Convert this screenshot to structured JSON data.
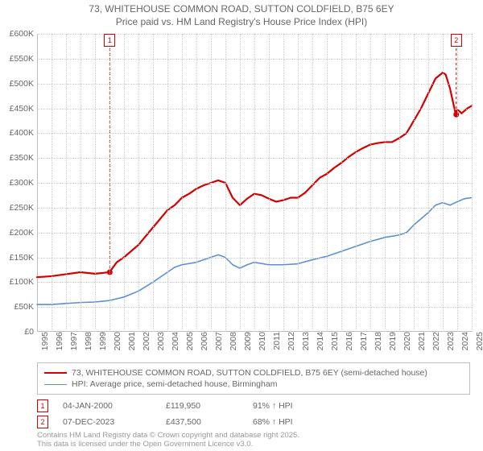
{
  "title_line1": "73, WHITEHOUSE COMMON ROAD, SUTTON COLDFIELD, B75 6EY",
  "title_line2": "Price paid vs. HM Land Registry's House Price Index (HPI)",
  "chart": {
    "type": "line",
    "background_color": "#ffffff",
    "grid_color": "#cccccc",
    "axis_color": "#bfbfbf",
    "text_color": "#666666",
    "x": {
      "min": 1995,
      "max": 2025,
      "step": 1,
      "labels": [
        "1995",
        "1996",
        "1997",
        "1998",
        "1999",
        "2000",
        "2001",
        "2002",
        "2003",
        "2004",
        "2005",
        "2006",
        "2007",
        "2008",
        "2009",
        "2010",
        "2011",
        "2012",
        "2013",
        "2014",
        "2015",
        "2016",
        "2017",
        "2018",
        "2019",
        "2020",
        "2021",
        "2022",
        "2023",
        "2024",
        "2025"
      ]
    },
    "y": {
      "min": 0,
      "max": 600000,
      "step": 50000,
      "prefix": "£",
      "suffix_k": "K",
      "labels": [
        "£0",
        "£50K",
        "£100K",
        "£150K",
        "£200K",
        "£250K",
        "£300K",
        "£350K",
        "£400K",
        "£450K",
        "£500K",
        "£550K",
        "£600K"
      ]
    },
    "series": [
      {
        "name": "price_paid",
        "label": "73, WHITEHOUSE COMMON ROAD, SUTTON COLDFIELD, B75 6EY (semi-detached house)",
        "color": "#d40000",
        "line_width": 2.2,
        "points": [
          [
            1995,
            110000
          ],
          [
            1996,
            112000
          ],
          [
            1997,
            116000
          ],
          [
            1998,
            120000
          ],
          [
            1999,
            117000
          ],
          [
            2000,
            119950
          ],
          [
            2000.5,
            140000
          ],
          [
            2001,
            150000
          ],
          [
            2002,
            175000
          ],
          [
            2003,
            210000
          ],
          [
            2004,
            245000
          ],
          [
            2004.5,
            255000
          ],
          [
            2005,
            270000
          ],
          [
            2005.5,
            278000
          ],
          [
            2006,
            288000
          ],
          [
            2006.5,
            295000
          ],
          [
            2007,
            300000
          ],
          [
            2007.5,
            305000
          ],
          [
            2008,
            300000
          ],
          [
            2008.5,
            270000
          ],
          [
            2009,
            255000
          ],
          [
            2009.5,
            268000
          ],
          [
            2010,
            278000
          ],
          [
            2010.5,
            275000
          ],
          [
            2011,
            268000
          ],
          [
            2011.5,
            262000
          ],
          [
            2012,
            265000
          ],
          [
            2012.5,
            270000
          ],
          [
            2013,
            270000
          ],
          [
            2013.5,
            280000
          ],
          [
            2014,
            295000
          ],
          [
            2014.5,
            310000
          ],
          [
            2015,
            318000
          ],
          [
            2015.5,
            330000
          ],
          [
            2016,
            340000
          ],
          [
            2016.5,
            352000
          ],
          [
            2017,
            362000
          ],
          [
            2017.5,
            370000
          ],
          [
            2018,
            377000
          ],
          [
            2018.5,
            380000
          ],
          [
            2019,
            382000
          ],
          [
            2019.5,
            382000
          ],
          [
            2020,
            390000
          ],
          [
            2020.5,
            400000
          ],
          [
            2021,
            425000
          ],
          [
            2021.5,
            450000
          ],
          [
            2022,
            480000
          ],
          [
            2022.5,
            510000
          ],
          [
            2023,
            522000
          ],
          [
            2023.2,
            518000
          ],
          [
            2023.5,
            490000
          ],
          [
            2023.9,
            437500
          ],
          [
            2024,
            448000
          ],
          [
            2024.3,
            440000
          ],
          [
            2024.7,
            450000
          ],
          [
            2025,
            455000
          ]
        ]
      },
      {
        "name": "hpi",
        "label": "HPI: Average price, semi-detached house, Birmingham",
        "color": "#5b8fd6",
        "line_width": 1.6,
        "points": [
          [
            1995,
            55000
          ],
          [
            1996,
            55000
          ],
          [
            1997,
            57000
          ],
          [
            1998,
            59000
          ],
          [
            1999,
            60000
          ],
          [
            2000,
            63000
          ],
          [
            2001,
            70000
          ],
          [
            2002,
            82000
          ],
          [
            2003,
            100000
          ],
          [
            2004,
            120000
          ],
          [
            2004.5,
            130000
          ],
          [
            2005,
            135000
          ],
          [
            2006,
            140000
          ],
          [
            2007,
            150000
          ],
          [
            2007.5,
            155000
          ],
          [
            2008,
            150000
          ],
          [
            2008.5,
            135000
          ],
          [
            2009,
            128000
          ],
          [
            2009.5,
            135000
          ],
          [
            2010,
            140000
          ],
          [
            2011,
            135000
          ],
          [
            2012,
            135000
          ],
          [
            2013,
            137000
          ],
          [
            2014,
            145000
          ],
          [
            2015,
            152000
          ],
          [
            2016,
            162000
          ],
          [
            2017,
            172000
          ],
          [
            2018,
            182000
          ],
          [
            2019,
            190000
          ],
          [
            2020,
            195000
          ],
          [
            2020.5,
            200000
          ],
          [
            2021,
            215000
          ],
          [
            2022,
            240000
          ],
          [
            2022.5,
            255000
          ],
          [
            2023,
            260000
          ],
          [
            2023.5,
            255000
          ],
          [
            2024,
            262000
          ],
          [
            2024.5,
            268000
          ],
          [
            2025,
            270000
          ]
        ]
      }
    ],
    "markers": [
      {
        "id": "1",
        "x": 2000.02,
        "y": 119950,
        "color": "#d40000",
        "vline_top": 600000
      },
      {
        "id": "2",
        "x": 2023.93,
        "y": 437500,
        "color": "#d40000",
        "vline_top": 600000
      }
    ]
  },
  "legend": {
    "border_color": "#bfbfbf"
  },
  "details": [
    {
      "id": "1",
      "date": "04-JAN-2000",
      "price": "£119,950",
      "hpi": "91% ↑ HPI",
      "color": "#d40000"
    },
    {
      "id": "2",
      "date": "07-DEC-2023",
      "price": "£437,500",
      "hpi": "68% ↑ HPI",
      "color": "#d40000"
    }
  ],
  "footer_line1": "Contains HM Land Registry data © Crown copyright and database right 2025.",
  "footer_line2": "This data is licensed under the Open Government Licence v3.0."
}
